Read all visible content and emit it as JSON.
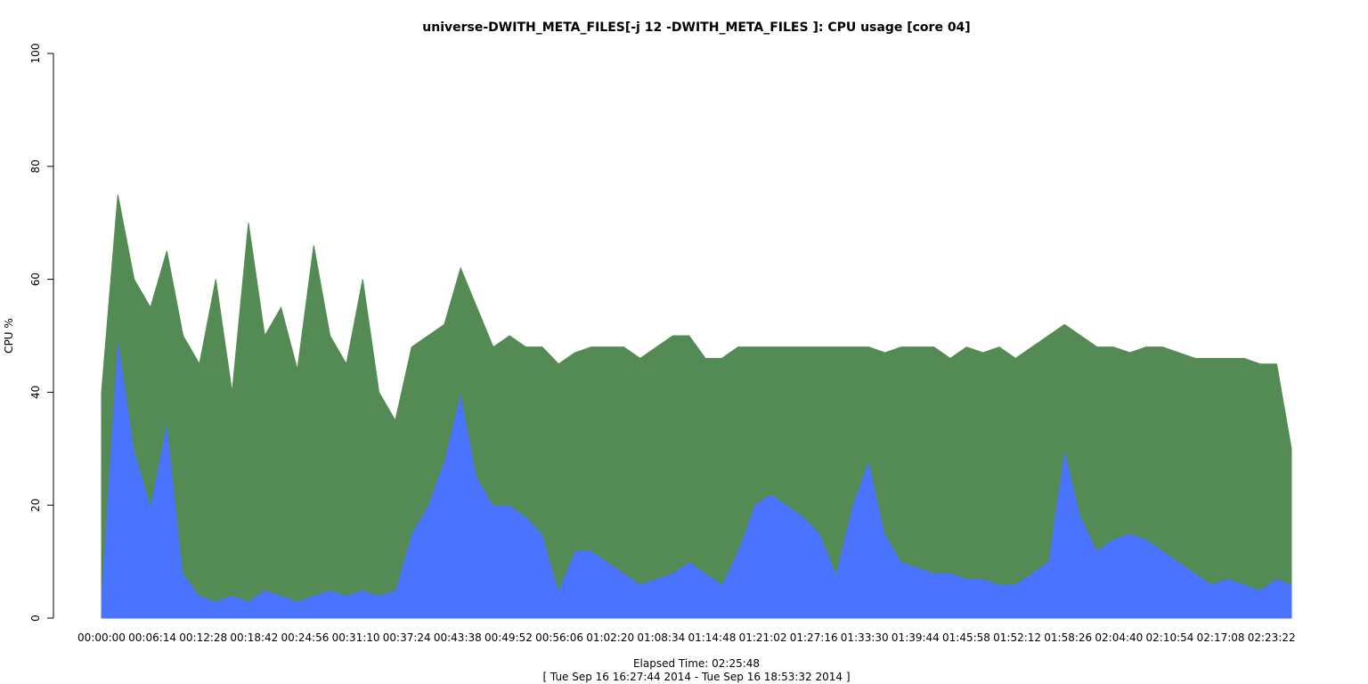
{
  "chart_data": {
    "type": "stacked-area",
    "title": "universe-DWITH_META_FILES[-j 12 -DWITH_META_FILES ]: CPU usage [core 04]",
    "y_label": "CPU %",
    "x_label": "Elapsed Time: 02:25:48",
    "subtitle": "[ Tue Sep 16 16:27:44 2014 - Tue Sep 16 18:53:32 2014 ]",
    "x": [
      0,
      120,
      240,
      360,
      480,
      600,
      720,
      840,
      960,
      1080,
      1200,
      1320,
      1440,
      1560,
      1680,
      1800,
      1920,
      2040,
      2160,
      2280,
      2400,
      2520,
      2640,
      2760,
      2880,
      3000,
      3120,
      3240,
      3360,
      3480,
      3600,
      3720,
      3840,
      3960,
      4080,
      4200,
      4320,
      4440,
      4560,
      4680,
      4800,
      4920,
      5040,
      5160,
      5280,
      5400,
      5520,
      5640,
      5760,
      5880,
      6000,
      6120,
      6240,
      6360,
      6480,
      6600,
      6720,
      6840,
      6960,
      7080,
      7200,
      7320,
      7440,
      7560,
      7680,
      7800,
      7920,
      8040,
      8160,
      8280,
      8400,
      8520,
      8640,
      8748
    ],
    "series": [
      {
        "color": "#4a73ff",
        "values": [
          5,
          50,
          30,
          20,
          35,
          8,
          4,
          3,
          4,
          3,
          5,
          4,
          3,
          4,
          5,
          4,
          5,
          4,
          5,
          15,
          20,
          28,
          40,
          25,
          20,
          20,
          18,
          15,
          5,
          12,
          12,
          10,
          8,
          6,
          7,
          8,
          10,
          8,
          6,
          12,
          20,
          22,
          20,
          18,
          15,
          8,
          20,
          28,
          15,
          10,
          9,
          8,
          8,
          7,
          7,
          6,
          6,
          8,
          10,
          30,
          18,
          12,
          14,
          15,
          14,
          12,
          10,
          8,
          6,
          7,
          6,
          5,
          7,
          6
        ]
      },
      {
        "color": "#548a54",
        "values": [
          35,
          25,
          30,
          35,
          30,
          42,
          41,
          57,
          36,
          67,
          45,
          51,
          41,
          62,
          45,
          41,
          55,
          36,
          30,
          33,
          30,
          24,
          22,
          30,
          28,
          30,
          30,
          33,
          40,
          35,
          36,
          38,
          40,
          40,
          41,
          42,
          40,
          38,
          40,
          36,
          28,
          26,
          28,
          30,
          33,
          40,
          28,
          20,
          32,
          38,
          39,
          40,
          38,
          41,
          40,
          42,
          40,
          40,
          40,
          22,
          32,
          36,
          34,
          32,
          34,
          36,
          37,
          38,
          40,
          39,
          40,
          40,
          38,
          24
        ]
      }
    ],
    "xlim": [
      0,
      8748
    ],
    "xticks": [
      {
        "value": 0,
        "label": "00:00:00"
      },
      {
        "value": 374,
        "label": "00:06:14"
      },
      {
        "value": 748,
        "label": "00:12:28"
      },
      {
        "value": 1122,
        "label": "00:18:42"
      },
      {
        "value": 1496,
        "label": "00:24:56"
      },
      {
        "value": 1870,
        "label": "00:31:10"
      },
      {
        "value": 2244,
        "label": "00:37:24"
      },
      {
        "value": 2618,
        "label": "00:43:38"
      },
      {
        "value": 2992,
        "label": "00:49:52"
      },
      {
        "value": 3366,
        "label": "00:56:06"
      },
      {
        "value": 3740,
        "label": "01:02:20"
      },
      {
        "value": 4114,
        "label": "01:08:34"
      },
      {
        "value": 4488,
        "label": "01:14:48"
      },
      {
        "value": 4862,
        "label": "01:21:02"
      },
      {
        "value": 5236,
        "label": "01:27:16"
      },
      {
        "value": 5610,
        "label": "01:33:30"
      },
      {
        "value": 5984,
        "label": "01:39:44"
      },
      {
        "value": 6358,
        "label": "01:45:58"
      },
      {
        "value": 6732,
        "label": "01:52:12"
      },
      {
        "value": 7106,
        "label": "01:58:26"
      },
      {
        "value": 7480,
        "label": "02:04:40"
      },
      {
        "value": 7854,
        "label": "02:10:54"
      },
      {
        "value": 8228,
        "label": "02:17:08"
      },
      {
        "value": 8602,
        "label": "02:23:22"
      }
    ],
    "ylim": [
      0,
      100
    ],
    "yticks": [
      0,
      20,
      40,
      60,
      80,
      100
    ]
  }
}
